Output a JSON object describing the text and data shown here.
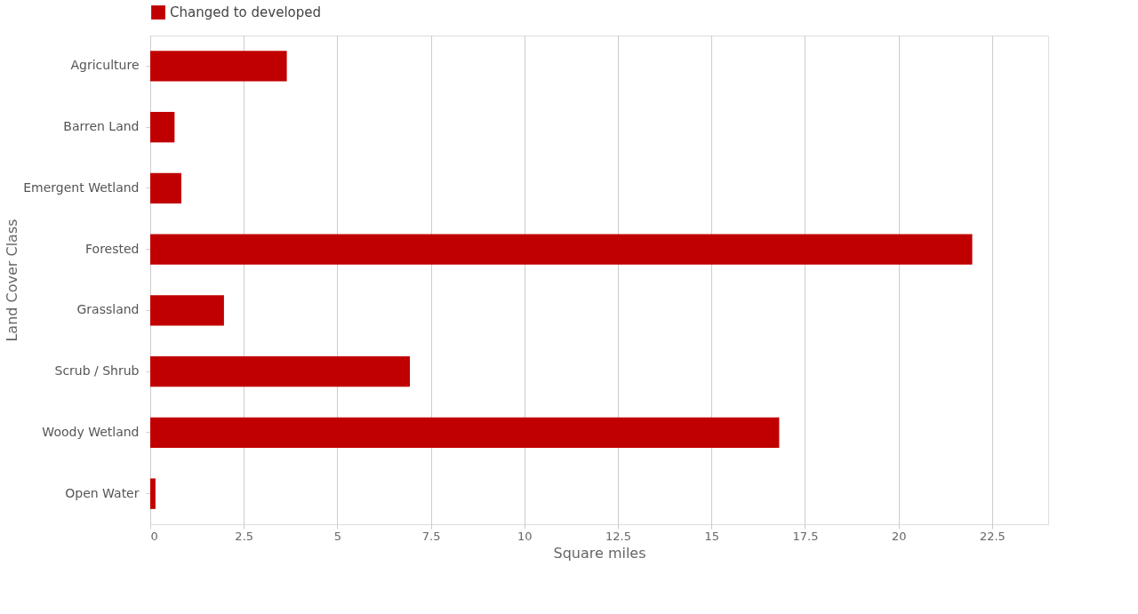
{
  "chart_data": {
    "type": "bar",
    "orientation": "horizontal",
    "xlabel": "Square miles",
    "ylabel": "Land Cover Class",
    "legend": "top",
    "categories": [
      "Agriculture",
      "Barren Land",
      "Emergent Wetland",
      "Forested",
      "Grassland",
      "Scrub / Shrub",
      "Woody Wetland",
      "Open Water"
    ],
    "series": [
      {
        "name": "Changed to developed",
        "color": "#c00000",
        "values": [
          3.65,
          0.65,
          0.83,
          21.97,
          1.97,
          6.94,
          16.81,
          0.14
        ]
      }
    ],
    "xlim": [
      0,
      24
    ],
    "xticks": [
      0,
      2.5,
      5,
      7.5,
      10,
      12.5,
      15,
      17.5,
      20,
      22.5
    ],
    "grid": "x"
  }
}
